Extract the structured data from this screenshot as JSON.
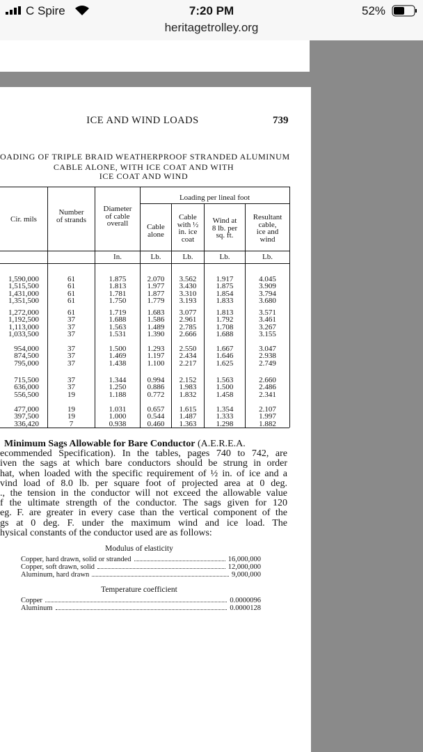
{
  "status_bar": {
    "carrier": "C Spire",
    "time": "7:20 PM",
    "battery": "52%"
  },
  "url": "heritagetrolley.org",
  "page": {
    "running_head": "ICE AND WIND LOADS",
    "page_number": "739",
    "table_title": [
      "OADING OF TRIPLE BRAID WEATHERPROOF STRANDED ALUMINUM",
      "CABLE ALONE, WITH ICE COAT AND WITH",
      "ICE COAT AND WIND"
    ],
    "table": {
      "group_header": "Loading per lineal foot",
      "columns": [
        [
          "Cir. mils"
        ],
        [
          "Number",
          "of strands"
        ],
        [
          "Diameter",
          "of cable",
          "overall"
        ],
        [
          "Cable",
          "alone"
        ],
        [
          "Cable",
          "with ½",
          "in. ice",
          "coat"
        ],
        [
          "Wind at",
          "8 lb. per",
          "sq. ft."
        ],
        [
          "Resultant",
          "cable,",
          "ice and",
          "wind"
        ]
      ],
      "units": [
        "In.",
        "Lb.",
        "Lb.",
        "Lb.",
        "Lb."
      ],
      "groups": [
        [
          [
            "1,590,000",
            "61",
            "1.875",
            "2.070",
            "3.562",
            "1.917",
            "4.045"
          ],
          [
            "1,515,500",
            "61",
            "1.813",
            "1.977",
            "3.430",
            "1.875",
            "3.909"
          ],
          [
            "1,431,000",
            "61",
            "1.781",
            "1.877",
            "3.310",
            "1.854",
            "3.794"
          ],
          [
            "1,351,500",
            "61",
            "1.750",
            "1.779",
            "3.193",
            "1.833",
            "3.680"
          ]
        ],
        [
          [
            "1,272,000",
            "61",
            "1.719",
            "1.683",
            "3.077",
            "1.813",
            "3.571"
          ],
          [
            "1,192,500",
            "37",
            "1.688",
            "1.586",
            "2.961",
            "1.792",
            "3.461"
          ],
          [
            "1,113,000",
            "37",
            "1.563",
            "1.489",
            "2.785",
            "1.708",
            "3.267"
          ],
          [
            "1,033,500",
            "37",
            "1.531",
            "1.390",
            "2.666",
            "1.688",
            "3.155"
          ]
        ],
        [
          [
            "954,000",
            "37",
            "1.500",
            "1.293",
            "2.550",
            "1.667",
            "3.047"
          ],
          [
            "874,500",
            "37",
            "1.469",
            "1.197",
            "2.434",
            "1.646",
            "2.938"
          ],
          [
            "795,000",
            "37",
            "1.438",
            "1.100",
            "2.217",
            "1.625",
            "2.749"
          ]
        ],
        [
          [
            "715,500",
            "37",
            "1.344",
            "0.994",
            "2.152",
            "1.563",
            "2.660"
          ],
          [
            "636,000",
            "37",
            "1.250",
            "0.886",
            "1.983",
            "1.500",
            "2.486"
          ],
          [
            "556,500",
            "19",
            "1.188",
            "0.772",
            "1.832",
            "1.458",
            "2.341"
          ]
        ],
        [
          [
            "477,000",
            "19",
            "1.031",
            "0.657",
            "1.615",
            "1.354",
            "2.107"
          ],
          [
            "397,500",
            "19",
            "1.000",
            "0.544",
            "1.487",
            "1.333",
            "1.997"
          ],
          [
            "336,420",
            "7",
            "0.938",
            "0.460",
            "1.363",
            "1.298",
            "1.882"
          ]
        ]
      ]
    },
    "paragraph": {
      "heading": "Minimum Sags Allowable for Bare Conductor",
      "lines": [
        " (A.E.R.E.A.",
        "ecommended Specification).  In the tables, pages 740 to 742, are",
        "iven the sags at which bare conductors should be strung in order",
        "hat, when loaded with the specific requirement of ½ in. of ice and a",
        "vind load of 8.0 lb. per square foot of projected area at 0 deg.",
        "., the tension in the conductor will not exceed the allowable value",
        "f the ultimate strength of the conductor.  The sags given for 120",
        "eg. F. are greater in every case than the vertical component of the",
        "gs at 0 deg. F. under the maximum wind and ice load.  The",
        "hysical constants of the conductor used are as follows:"
      ]
    },
    "constants": [
      {
        "title": "Modulus of elasticity",
        "rows": [
          {
            "name": "Copper, hard drawn, solid or stranded",
            "value": "16,000,000"
          },
          {
            "name": "Copper, soft drawn, solid",
            "value": "12,000,000"
          },
          {
            "name": "Aluminum, hard drawn",
            "value": "9,000,000"
          }
        ]
      },
      {
        "title": "Temperature coefficient",
        "rows": [
          {
            "name": "Copper",
            "value": "0.0000096"
          },
          {
            "name": "Aluminum",
            "value": "0.0000128"
          }
        ]
      }
    ]
  }
}
